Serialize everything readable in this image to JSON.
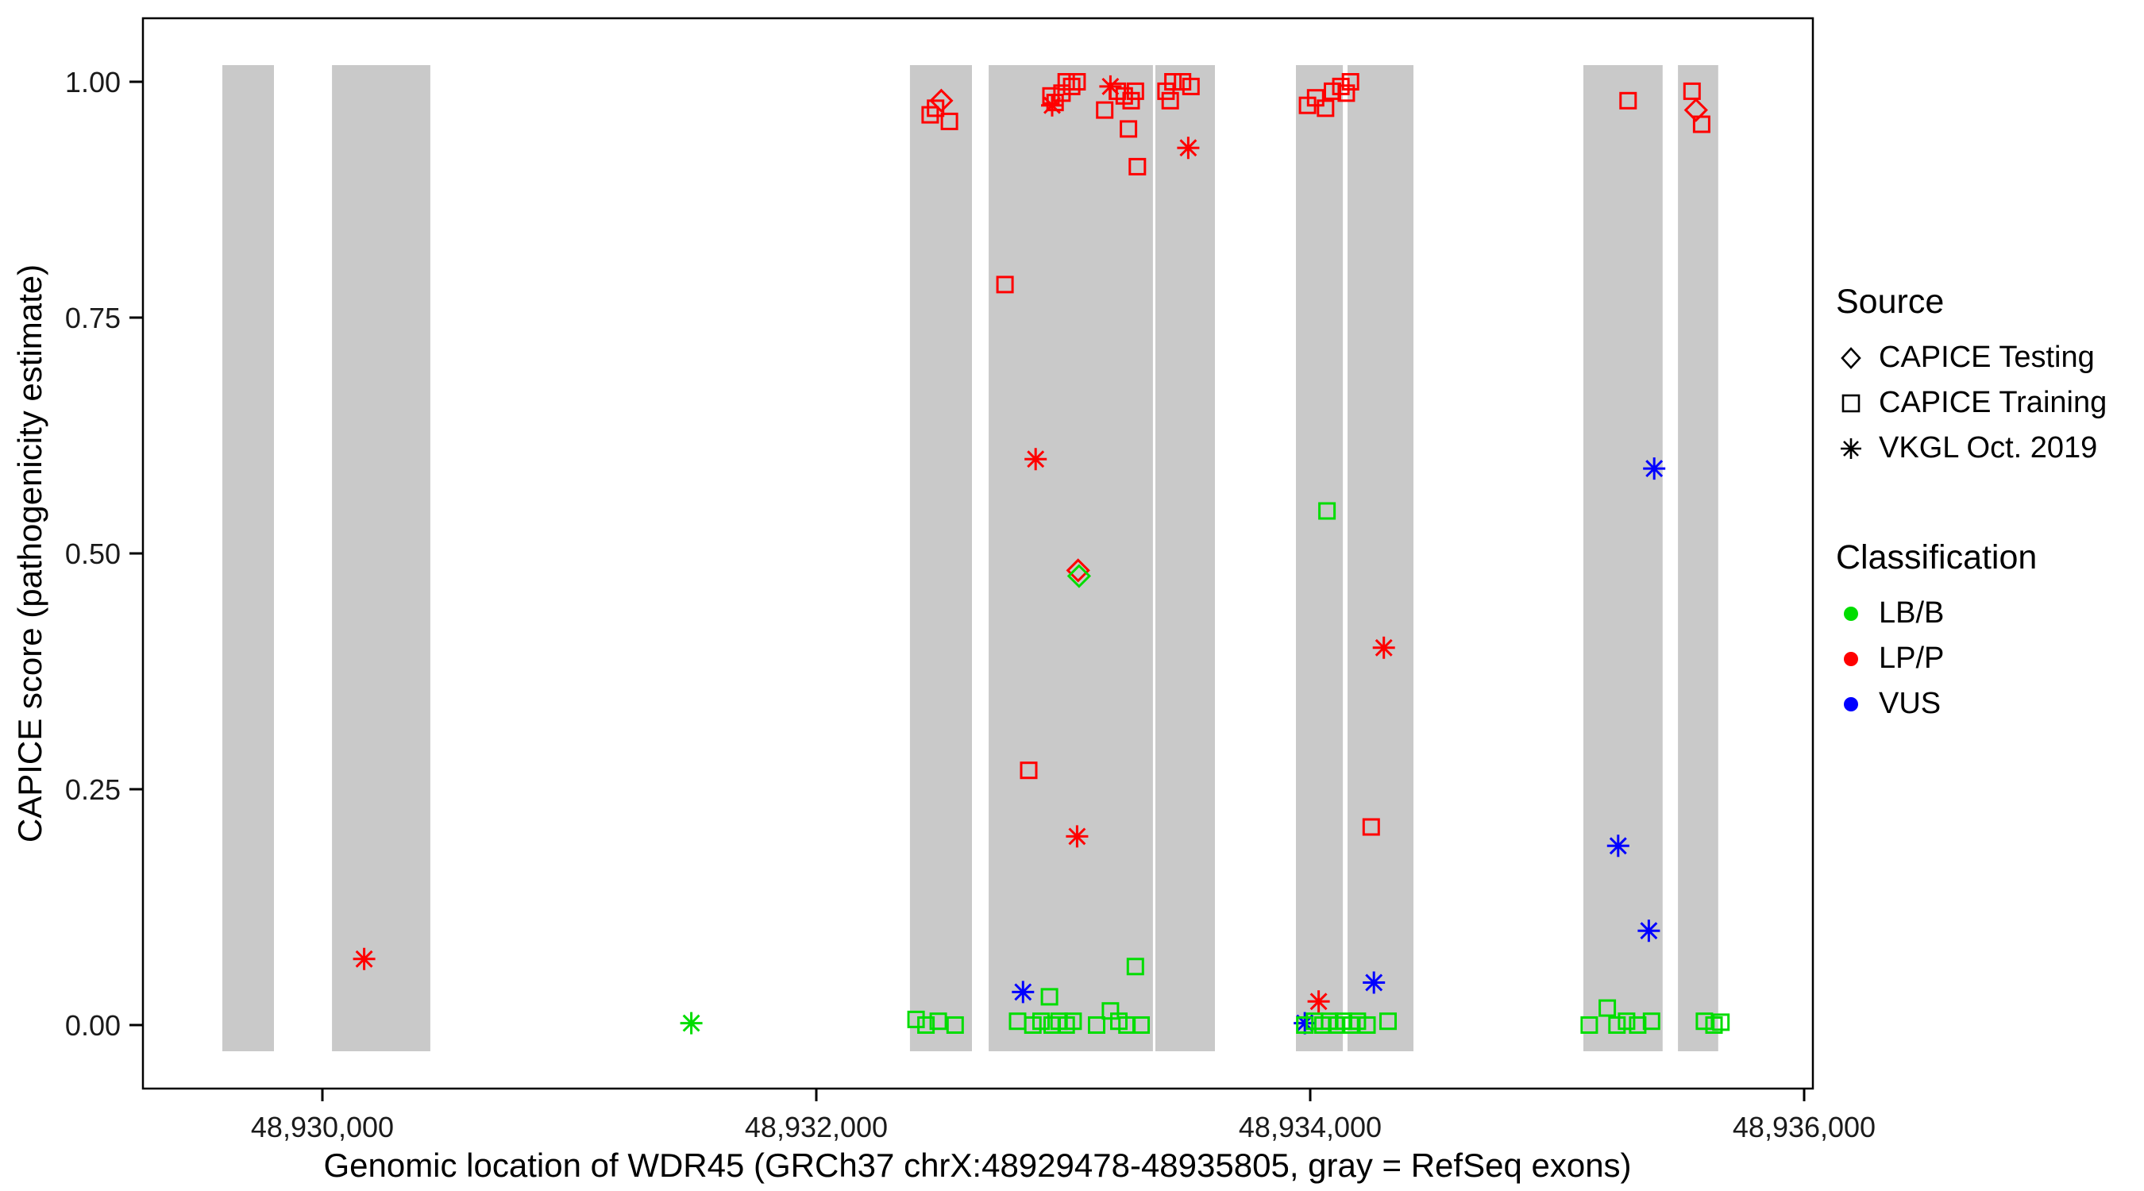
{
  "legend": {
    "source_title": "Source",
    "source_items": [
      {
        "label": "CAPICE Testing"
      },
      {
        "label": "CAPICE Training"
      },
      {
        "label": "VKGL Oct. 2019"
      }
    ],
    "class_title": "Classification",
    "class_items": [
      {
        "label": "LB/B"
      },
      {
        "label": "LP/P"
      },
      {
        "label": "VUS"
      }
    ]
  },
  "chart_data": {
    "type": "scatter",
    "title": "",
    "xlabel": "Genomic location of WDR45 (GRCh37 chrX:48929478-48935805, gray = RefSeq exons)",
    "ylabel": "CAPICE score (pathogenicity estimate)",
    "x_ticks": [
      48930000,
      48932000,
      48934000,
      48936000
    ],
    "x_tick_labels": [
      "48,930,000",
      "48,932,000",
      "48,934,000",
      "48,936,000"
    ],
    "y_ticks": [
      0,
      0.25,
      0.5,
      0.75,
      1.0
    ],
    "y_tick_labels": [
      "0.00",
      "0.25",
      "0.50",
      "0.75",
      "1.00"
    ],
    "xlim": [
      48929273,
      48936035
    ],
    "ylim": [
      0,
      1
    ],
    "grid": false,
    "legend_position": "right",
    "colors": {
      "exon": "#c9c9c9",
      "lbb": "#00dd00",
      "lpp": "#ff0000",
      "vus": "#0000ff"
    },
    "shape_key": {
      "diamond": "CAPICE Testing",
      "square": "CAPICE Training",
      "asterisk": "VKGL Oct. 2019"
    },
    "color_key": {
      "green": "LB/B",
      "red": "LP/P",
      "blue": "VUS"
    },
    "exons": [
      [
        48929595,
        48929804
      ],
      [
        48930039,
        48930437
      ],
      [
        48932379,
        48932630
      ],
      [
        48932698,
        48933363
      ],
      [
        48933373,
        48933614
      ],
      [
        48933942,
        48934132
      ],
      [
        48934151,
        48934418
      ],
      [
        48935106,
        48935427
      ],
      [
        48935489,
        48935652
      ]
    ],
    "points": [
      [
        48932506,
        0.98,
        "diamond",
        "red"
      ],
      [
        48933060,
        0.482,
        "diamond",
        "red"
      ],
      [
        48933064,
        0.476,
        "diamond",
        "green"
      ],
      [
        48935562,
        0.97,
        "diamond",
        "red"
      ],
      [
        48932461,
        0.965,
        "square",
        "red"
      ],
      [
        48932483,
        0.972,
        "square",
        "red"
      ],
      [
        48932539,
        0.958,
        "square",
        "red"
      ],
      [
        48932764,
        0.785,
        "square",
        "red"
      ],
      [
        48932860,
        0.27,
        "square",
        "red"
      ],
      [
        48932950,
        0.985,
        "square",
        "red"
      ],
      [
        48932967,
        0.978,
        "square",
        "red"
      ],
      [
        48932995,
        0.988,
        "square",
        "red"
      ],
      [
        48933012,
        1.0,
        "square",
        "red"
      ],
      [
        48933034,
        0.995,
        "square",
        "red"
      ],
      [
        48933056,
        1.0,
        "square",
        "red"
      ],
      [
        48933168,
        0.97,
        "square",
        "red"
      ],
      [
        48933219,
        0.99,
        "square",
        "red"
      ],
      [
        48933247,
        0.985,
        "square",
        "red"
      ],
      [
        48933264,
        0.95,
        "square",
        "red"
      ],
      [
        48933275,
        0.98,
        "square",
        "red"
      ],
      [
        48933292,
        0.99,
        "square",
        "red"
      ],
      [
        48933300,
        0.91,
        "square",
        "red"
      ],
      [
        48933416,
        0.99,
        "square",
        "red"
      ],
      [
        48933433,
        0.98,
        "square",
        "red"
      ],
      [
        48933444,
        1.0,
        "square",
        "red"
      ],
      [
        48933483,
        1.0,
        "square",
        "red"
      ],
      [
        48933517,
        0.995,
        "square",
        "red"
      ],
      [
        48933989,
        0.975,
        "square",
        "red"
      ],
      [
        48934022,
        0.983,
        "square",
        "red"
      ],
      [
        48934062,
        0.972,
        "square",
        "red"
      ],
      [
        48934090,
        0.99,
        "square",
        "red"
      ],
      [
        48934124,
        0.995,
        "square",
        "red"
      ],
      [
        48934146,
        0.988,
        "square",
        "red"
      ],
      [
        48934163,
        1.0,
        "square",
        "red"
      ],
      [
        48934247,
        0.21,
        "square",
        "red"
      ],
      [
        48935287,
        0.98,
        "square",
        "red"
      ],
      [
        48935546,
        0.99,
        "square",
        "red"
      ],
      [
        48935585,
        0.955,
        "square",
        "red"
      ],
      [
        48930169,
        0.07,
        "asterisk",
        "red"
      ],
      [
        48932888,
        0.6,
        "asterisk",
        "red"
      ],
      [
        48932955,
        0.975,
        "asterisk",
        "red"
      ],
      [
        48933056,
        0.2,
        "asterisk",
        "red"
      ],
      [
        48933191,
        0.995,
        "asterisk",
        "red"
      ],
      [
        48933506,
        0.93,
        "asterisk",
        "red"
      ],
      [
        48934034,
        0.025,
        "asterisk",
        "red"
      ],
      [
        48934298,
        0.4,
        "asterisk",
        "red"
      ],
      [
        48932837,
        0.035,
        "asterisk",
        "blue"
      ],
      [
        48933978,
        0.002,
        "asterisk",
        "blue"
      ],
      [
        48934258,
        0.045,
        "asterisk",
        "blue"
      ],
      [
        48935247,
        0.19,
        "asterisk",
        "blue"
      ],
      [
        48935371,
        0.1,
        "asterisk",
        "blue"
      ],
      [
        48935393,
        0.59,
        "asterisk",
        "blue"
      ],
      [
        48931494,
        0.002,
        "asterisk",
        "green"
      ],
      [
        48934068,
        0.545,
        "square",
        "green"
      ],
      [
        48932404,
        0.006,
        "square",
        "green"
      ],
      [
        48932444,
        0.0,
        "square",
        "green"
      ],
      [
        48932494,
        0.004,
        "square",
        "green"
      ],
      [
        48932562,
        0.0,
        "square",
        "green"
      ],
      [
        48932815,
        0.004,
        "square",
        "green"
      ],
      [
        48932877,
        0.0,
        "square",
        "green"
      ],
      [
        48932910,
        0.004,
        "square",
        "green"
      ],
      [
        48932944,
        0.03,
        "square",
        "green"
      ],
      [
        48932955,
        0.0,
        "square",
        "green"
      ],
      [
        48932983,
        0.004,
        "square",
        "green"
      ],
      [
        48933012,
        0.0,
        "square",
        "green"
      ],
      [
        48933040,
        0.004,
        "square",
        "green"
      ],
      [
        48933135,
        0.0,
        "square",
        "green"
      ],
      [
        48933191,
        0.015,
        "square",
        "green"
      ],
      [
        48933225,
        0.004,
        "square",
        "green"
      ],
      [
        48933258,
        0.0,
        "square",
        "green"
      ],
      [
        48933292,
        0.062,
        "square",
        "green"
      ],
      [
        48933315,
        0.0,
        "square",
        "green"
      ],
      [
        48933978,
        0.0,
        "square",
        "green"
      ],
      [
        48934017,
        0.004,
        "square",
        "green"
      ],
      [
        48934051,
        0.0,
        "square",
        "green"
      ],
      [
        48934079,
        0.004,
        "square",
        "green"
      ],
      [
        48934107,
        0.0,
        "square",
        "green"
      ],
      [
        48934135,
        0.004,
        "square",
        "green"
      ],
      [
        48934163,
        0.0,
        "square",
        "green"
      ],
      [
        48934191,
        0.004,
        "square",
        "green"
      ],
      [
        48934230,
        0.0,
        "square",
        "green"
      ],
      [
        48934315,
        0.004,
        "square",
        "green"
      ],
      [
        48935130,
        0.0,
        "square",
        "green"
      ],
      [
        48935203,
        0.018,
        "square",
        "green"
      ],
      [
        48935242,
        0.0,
        "square",
        "green"
      ],
      [
        48935281,
        0.004,
        "square",
        "green"
      ],
      [
        48935326,
        0.0,
        "square",
        "green"
      ],
      [
        48935382,
        0.004,
        "square",
        "green"
      ],
      [
        48935596,
        0.004,
        "square",
        "green"
      ],
      [
        48935635,
        0.0,
        "square",
        "green"
      ],
      [
        48935663,
        0.003,
        "square",
        "green"
      ]
    ]
  }
}
